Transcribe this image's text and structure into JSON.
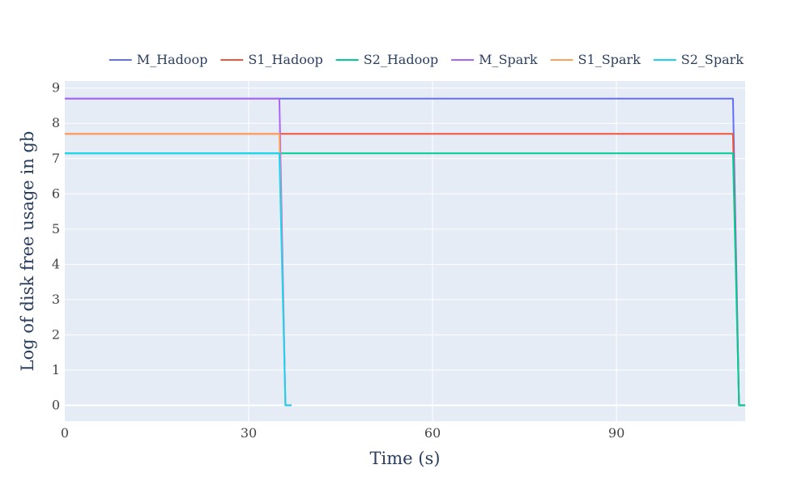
{
  "chart_data": {
    "type": "line",
    "xlabel": "Time (s)",
    "ylabel": "Log of disk free usage in gb",
    "xlim": [
      0,
      111
    ],
    "ylim": [
      -0.45,
      9.2
    ],
    "xticks": [
      0,
      30,
      60,
      90
    ],
    "yticks": [
      0,
      1,
      2,
      3,
      4,
      5,
      6,
      7,
      8,
      9
    ],
    "grid": true,
    "legend": "top",
    "series": [
      {
        "name": "M_Hadoop",
        "color": "#636efa",
        "x": [
          0,
          109,
          110,
          111
        ],
        "y": [
          8.7,
          8.7,
          0,
          0
        ]
      },
      {
        "name": "S1_Hadoop",
        "color": "#ef553b",
        "x": [
          0,
          109,
          110,
          111
        ],
        "y": [
          7.7,
          7.7,
          0,
          0
        ]
      },
      {
        "name": "S2_Hadoop",
        "color": "#00cc96",
        "x": [
          0,
          109,
          110,
          111
        ],
        "y": [
          7.15,
          7.15,
          0,
          0
        ]
      },
      {
        "name": "M_Spark",
        "color": "#ab63fa",
        "x": [
          0,
          35,
          36,
          37
        ],
        "y": [
          8.7,
          8.7,
          0,
          0
        ]
      },
      {
        "name": "S1_Spark",
        "color": "#ffa15a",
        "x": [
          0,
          35,
          36,
          37
        ],
        "y": [
          7.7,
          7.7,
          0,
          0
        ]
      },
      {
        "name": "S2_Spark",
        "color": "#19d3f3",
        "x": [
          0,
          35,
          36,
          37
        ],
        "y": [
          7.15,
          7.15,
          0,
          0
        ]
      }
    ]
  }
}
